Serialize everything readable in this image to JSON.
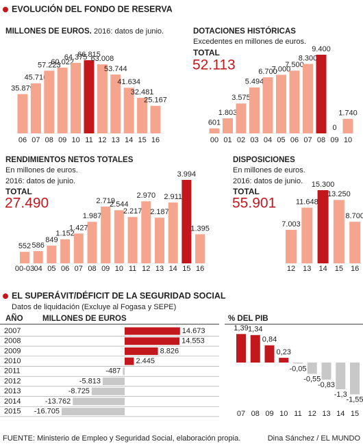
{
  "sections": [
    {
      "title": "EVOLUCIÓN DEL FONDO DE RESERVA"
    },
    {
      "title": "EL SUPERÁVIT/DÉFICIT DE LA SEGURIDAD SOCIAL",
      "subtitle": "Datos de liquidación (Excluye al Fogasa y SEPE)"
    }
  ],
  "chart_data": [
    {
      "type": "bar",
      "title": "MILLONES DE EUROS.",
      "subtitle": "2016: datos de junio.",
      "categories": [
        "06",
        "07",
        "08",
        "09",
        "10",
        "11",
        "12",
        "13",
        "14",
        "15",
        "16"
      ],
      "values": [
        35879,
        45716,
        57223,
        60022,
        64375,
        66815,
        63008,
        53744,
        41634,
        32481,
        25167
      ],
      "value_labels": [
        "35.879",
        "45.716",
        "57.223",
        "60.022",
        "64.375",
        "66.815",
        "63.008",
        "53.744",
        "41.634",
        "32.481",
        "25.167"
      ],
      "colors": [
        "#f5a48e",
        "#f5a48e",
        "#f5a48e",
        "#f5a48e",
        "#f5a48e",
        "#c1171d",
        "#f5a48e",
        "#f5a48e",
        "#f5a48e",
        "#f5a48e",
        "#f5a48e"
      ]
    },
    {
      "type": "bar",
      "title": "DOTACIONES HISTÓRICAS",
      "subtitle": "Excedentes en millones de euros.",
      "total_text": "TOTAL",
      "total": "52.113",
      "categories": [
        "00",
        "01",
        "02",
        "03",
        "04",
        "05",
        "06",
        "07",
        "08",
        "09",
        "10"
      ],
      "values": [
        601,
        1803,
        3575,
        5494,
        6700,
        7000,
        7500,
        8300,
        9400,
        0,
        1740
      ],
      "value_labels": [
        "601",
        "1.803",
        "3.575",
        "5.494",
        "6.700",
        "7.000",
        "7.500",
        "8.300",
        "9.400",
        "0",
        "1.740"
      ],
      "colors": [
        "#f5a48e",
        "#f5a48e",
        "#f5a48e",
        "#f5a48e",
        "#f5a48e",
        "#f5a48e",
        "#f5a48e",
        "#f5a48e",
        "#c1171d",
        "#f5a48e",
        "#f5a48e"
      ]
    },
    {
      "type": "bar",
      "title": "RENDIMIENTOS NETOS TOTALES",
      "subtitle": "En millones de euros.",
      "note": "2016: datos de junio.",
      "total_text": "TOTAL",
      "total": "27.490",
      "categories": [
        "00-03",
        "04",
        "05",
        "06",
        "07",
        "08",
        "09",
        "10",
        "11",
        "12",
        "13",
        "14",
        "15",
        "16"
      ],
      "values": [
        552,
        586,
        849,
        1152,
        1427,
        1987,
        2719,
        2544,
        2217,
        2970,
        2187,
        2911,
        3994,
        1395
      ],
      "value_labels": [
        "552",
        "586",
        "849",
        "1.152",
        "1.427",
        "1.987",
        "2.719",
        "2.544",
        "2.217",
        "2.970",
        "2.187",
        "2.911",
        "3.994",
        "1.395"
      ],
      "colors": [
        "#f5a48e",
        "#f5a48e",
        "#f5a48e",
        "#f5a48e",
        "#f5a48e",
        "#f5a48e",
        "#f5a48e",
        "#f5a48e",
        "#f5a48e",
        "#f5a48e",
        "#f5a48e",
        "#f5a48e",
        "#c1171d",
        "#f5a48e"
      ]
    },
    {
      "type": "bar",
      "title": "DISPOSICIONES",
      "subtitle": "En millones de euros.",
      "note": "2016: datos de junio.",
      "total_text": "TOTAL",
      "total": "55.901",
      "categories": [
        "12",
        "13",
        "14",
        "15",
        "16"
      ],
      "values": [
        7003,
        11648,
        15300,
        13250,
        8700
      ],
      "value_labels": [
        "7.003",
        "11.648",
        "15.300",
        "13.250",
        "8.700"
      ],
      "colors": [
        "#f5a48e",
        "#f5a48e",
        "#c1171d",
        "#f5a48e",
        "#f5a48e"
      ]
    },
    {
      "type": "hbar",
      "category_header": "AÑO",
      "title": "MILLONES DE EUROS",
      "categories": [
        "2007",
        "2008",
        "2009",
        "2010",
        "2011",
        "2012",
        "2013",
        "2014",
        "2015"
      ],
      "values": [
        14673,
        14553,
        8826,
        2445,
        -487,
        -5813,
        -8725,
        -13762,
        -16705
      ],
      "value_labels": [
        "14.673",
        "14.553",
        "8.826",
        "2.445",
        "-487",
        "-5.813",
        "-8.725",
        "-13.762",
        "-16.705"
      ],
      "positive_color": "#c1171d",
      "negative_color": "#c8c8c8"
    },
    {
      "type": "bar",
      "title": "% DEL PIB",
      "categories": [
        "07",
        "08",
        "09",
        "10",
        "11",
        "12",
        "13",
        "14",
        "15"
      ],
      "values": [
        1.39,
        1.34,
        0.84,
        0.23,
        -0.05,
        -0.55,
        -0.83,
        -1.3,
        -1.55
      ],
      "value_labels": [
        "1,39",
        "1,34",
        "0,84",
        "0,23",
        "-0,05",
        "-0,55",
        "-0,83",
        "-1,3",
        "-1,55"
      ],
      "positive_color": "#c1171d",
      "negative_color": "#c8c8c8"
    }
  ],
  "footer": {
    "source": "FUENTE:  Ministerio de Empleo y Seguridad Social, elaboración propia.",
    "credit": "Dina Sánchez / EL MUNDO"
  }
}
